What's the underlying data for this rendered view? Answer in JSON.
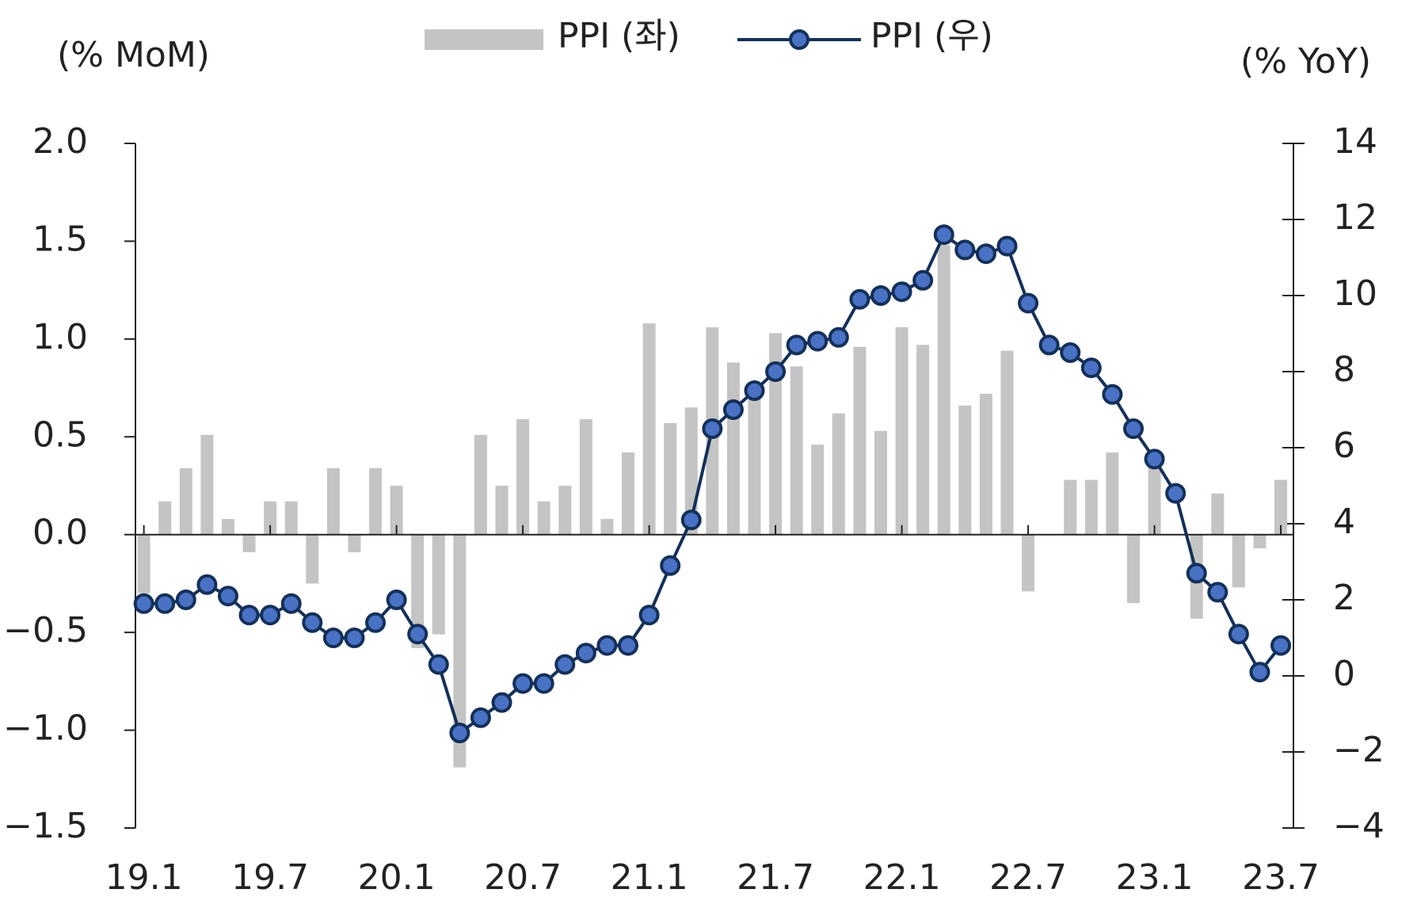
{
  "chart_data": {
    "type": "bar_line",
    "ylabel": "(% MoM)",
    "y2label": "(% YoY)",
    "categories": [
      "19.1",
      null,
      null,
      null,
      null,
      null,
      "19.7",
      null,
      null,
      null,
      null,
      null,
      "20.1",
      null,
      null,
      null,
      null,
      null,
      "20.7",
      null,
      null,
      null,
      null,
      null,
      "21.1",
      null,
      null,
      null,
      null,
      null,
      "21.7",
      null,
      null,
      null,
      null,
      null,
      "22.1",
      null,
      null,
      null,
      null,
      null,
      "22.7",
      null,
      null,
      null,
      null,
      null,
      "23.1",
      null,
      null,
      null,
      null,
      null,
      "23.7"
    ],
    "series": [
      {
        "name": "PPI (좌)",
        "type": "bar",
        "color": "#c4c4c4",
        "values": [
          -0.3,
          0.17,
          0.34,
          0.51,
          0.08,
          -0.09,
          0.17,
          0.17,
          -0.25,
          0.34,
          -0.09,
          0.34,
          0.25,
          -0.58,
          -0.51,
          -1.19,
          0.51,
          0.25,
          0.59,
          0.17,
          0.25,
          0.59,
          0.08,
          0.42,
          1.08,
          0.57,
          0.65,
          1.06,
          0.88,
          0.76,
          1.03,
          0.86,
          0.46,
          0.62,
          0.96,
          0.53,
          1.06,
          0.97,
          1.48,
          0.66,
          0.72,
          0.94,
          -0.29,
          0.0,
          0.28,
          0.28,
          0.42,
          -0.35,
          0.39,
          0.0,
          -0.43,
          0.21,
          -0.27,
          -0.07,
          0.28
        ]
      },
      {
        "name": "PPI (우)",
        "type": "line",
        "axis": "y2",
        "color": "#14305a",
        "marker_color": "#4a72c4",
        "values": [
          1.9,
          1.9,
          2.0,
          2.4,
          2.1,
          1.6,
          1.6,
          1.9,
          1.4,
          1.0,
          1.0,
          1.4,
          2.0,
          1.1,
          0.3,
          -1.5,
          -1.1,
          -0.7,
          -0.2,
          -0.2,
          0.3,
          0.6,
          0.8,
          0.8,
          1.6,
          2.9,
          4.1,
          6.5,
          7.0,
          7.5,
          8.0,
          8.7,
          8.8,
          8.9,
          9.9,
          10.0,
          10.1,
          10.4,
          11.6,
          11.2,
          11.1,
          11.3,
          9.8,
          8.7,
          8.5,
          8.1,
          7.4,
          6.5,
          5.7,
          4.8,
          2.7,
          2.2,
          1.1,
          0.1,
          0.8
        ]
      }
    ],
    "ylim": [
      -1.5,
      2.0
    ],
    "yticks": [
      {
        "value": -1.5,
        "label": "−1.5"
      },
      {
        "value": -1.0,
        "label": "−1.0"
      },
      {
        "value": -0.5,
        "label": "−0.5"
      },
      {
        "value": 0,
        "label": "0.0"
      },
      {
        "value": 0.5,
        "label": "0.5"
      },
      {
        "value": 1.0,
        "label": "1.0"
      },
      {
        "value": 1.5,
        "label": "1.5"
      },
      {
        "value": 2.0,
        "label": "2.0"
      }
    ],
    "y2lim": [
      -4,
      14
    ],
    "y2ticks": [
      {
        "value": -4,
        "label": "−4"
      },
      {
        "value": -2,
        "label": "−2"
      },
      0,
      2,
      4,
      6,
      8,
      10,
      12,
      14
    ],
    "legend": "top"
  }
}
